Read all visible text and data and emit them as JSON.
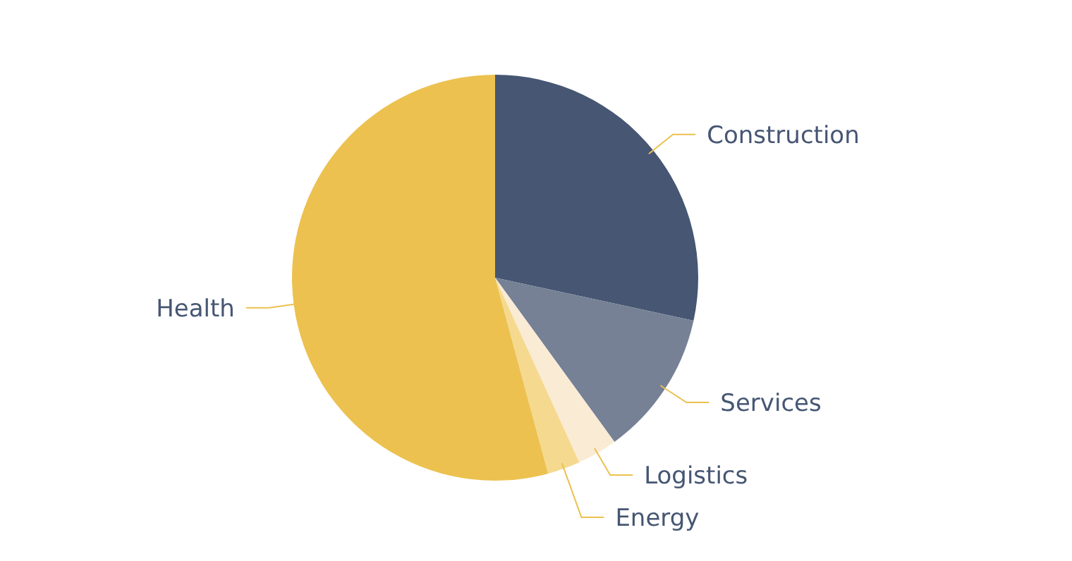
{
  "chart_data": {
    "type": "pie",
    "categories": [
      "Construction",
      "Services",
      "Logistics",
      "Energy",
      "Health"
    ],
    "values": [
      28.4,
      11.6,
      3.2,
      2.6,
      54.2
    ],
    "colors": [
      "#465673",
      "#768196",
      "#faebd4",
      "#f5d98f",
      "#ecc14f"
    ],
    "legend": false
  }
}
